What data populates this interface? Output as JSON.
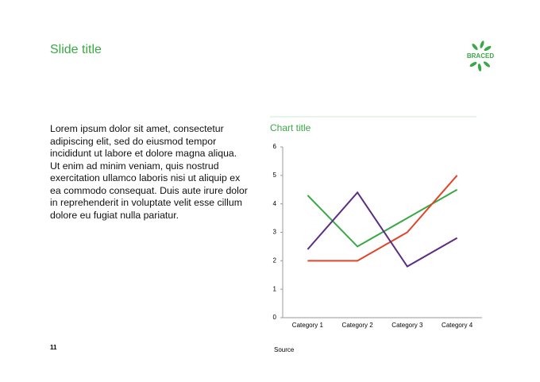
{
  "slide": {
    "title": "Slide title",
    "logo": "BRACED",
    "body": "Lorem ipsum dolor sit amet, consectetur adipiscing elit, sed do eiusmod tempor incididunt ut labore et dolore magna aliqua. Ut enim ad minim veniam, quis nostrud exercitation ullamco laboris nisi ut aliquip ex ea commodo consequat. Duis aute irure dolor in reprehenderit in voluptate velit esse cillum dolore eu fugiat nulla pariatur.",
    "page_number": "11",
    "source": "Source"
  },
  "chart_data": {
    "type": "line",
    "title": "Chart title",
    "categories": [
      "Category 1",
      "Category 2",
      "Category 3",
      "Category 4"
    ],
    "series": [
      {
        "color": "#3aa845",
        "values": [
          4.3,
          2.5,
          3.5,
          4.5
        ]
      },
      {
        "color": "#e0452a",
        "values": [
          2.0,
          2.0,
          3.0,
          5.0
        ]
      },
      {
        "color": "#5b2c83",
        "values": [
          2.4,
          4.4,
          1.8,
          2.8
        ]
      }
    ],
    "ylim": [
      0,
      6
    ],
    "yticks": [
      0,
      1,
      2,
      3,
      4,
      5,
      6
    ],
    "grid": false
  }
}
